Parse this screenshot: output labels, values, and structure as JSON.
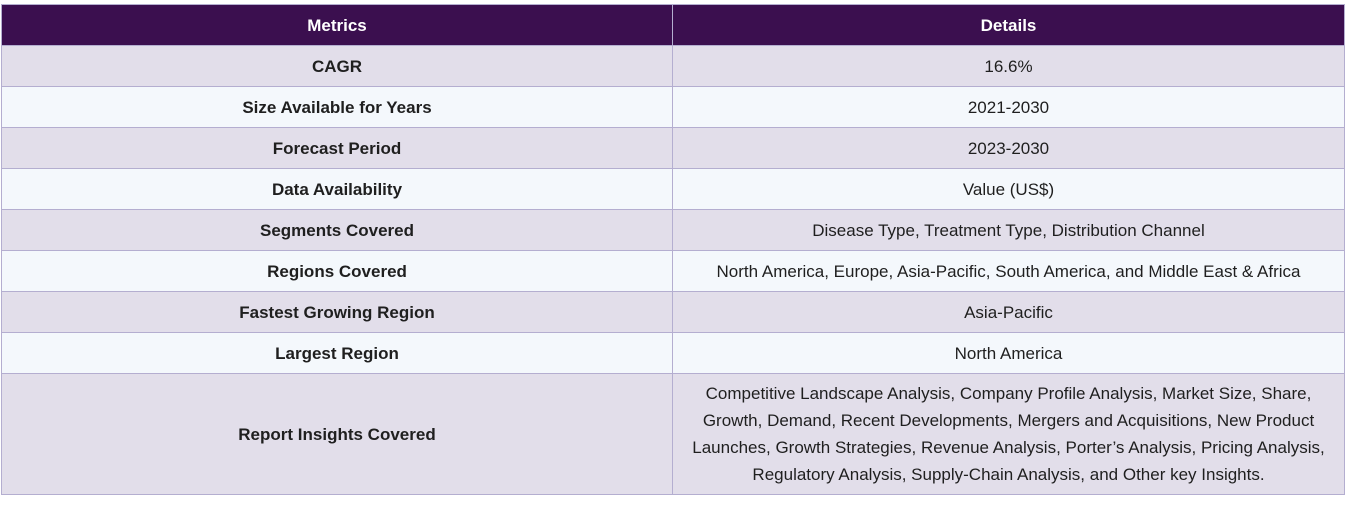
{
  "table": {
    "headers": [
      "Metrics",
      "Details"
    ],
    "rows": [
      {
        "metric": "CAGR",
        "detail": "16.6%"
      },
      {
        "metric": "Size Available for Years",
        "detail": "2021-2030"
      },
      {
        "metric": "Forecast Period",
        "detail": "2023-2030"
      },
      {
        "metric": "Data Availability",
        "detail": "Value (US$)"
      },
      {
        "metric": "Segments Covered",
        "detail": "Disease Type, Treatment Type, Distribution Channel"
      },
      {
        "metric": "Regions Covered",
        "detail": "North America, Europe, Asia-Pacific, South America, and Middle East & Africa"
      },
      {
        "metric": "Fastest Growing Region",
        "detail": "Asia-Pacific"
      },
      {
        "metric": "Largest Region",
        "detail": "North America"
      },
      {
        "metric": "Report Insights Covered",
        "detail": "Competitive Landscape Analysis, Company Profile Analysis, Market Size, Share, Growth, Demand, Recent Developments, Mergers and Acquisitions, New Product Launches, Growth Strategies, Revenue Analysis, Porter’s Analysis, Pricing Analysis, Regulatory Analysis, Supply-Chain Analysis, and Other key Insights."
      }
    ]
  },
  "colors": {
    "header_bg": "#3b0f4f",
    "row_odd_bg": "#e2deea",
    "row_even_bg": "#f4f8fc",
    "border": "#b4aed0"
  }
}
